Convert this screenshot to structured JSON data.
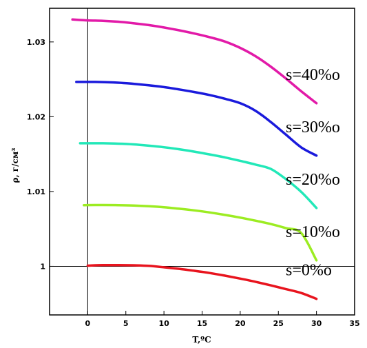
{
  "chart_data": {
    "type": "line",
    "title": "",
    "xlabel": "T,ºC",
    "ylabel": "ρ, г/см³",
    "xlim": [
      -5,
      35
    ],
    "ylim": [
      0.9935,
      1.0345
    ],
    "x_ticks": [
      0,
      5,
      10,
      15,
      20,
      25,
      30,
      35
    ],
    "x_tick_labels": [
      "0",
      "5",
      "10",
      "15",
      "20",
      "25",
      "30",
      "35"
    ],
    "y_ticks": [
      1.0,
      1.01,
      1.02,
      1.03
    ],
    "y_tick_labels": [
      "1",
      "1.01",
      "1.02",
      "1.03"
    ],
    "reference_lines": {
      "x": 0,
      "y": 1.0
    },
    "grid": false,
    "legend": "inline labels at right end of each curve",
    "series": [
      {
        "name": "s=0‰",
        "label": "s=0%o",
        "color": "#e8141e",
        "x": [
          0,
          2,
          4,
          6,
          8,
          10,
          12,
          14,
          16,
          18,
          20,
          22,
          24,
          26,
          28,
          30
        ],
        "y": [
          1.00009,
          1.00015,
          1.00016,
          1.00013,
          1.00006,
          0.99987,
          0.99966,
          0.9994,
          0.9991,
          0.99875,
          0.99836,
          0.99793,
          0.99745,
          0.99695,
          0.99643,
          0.99565
        ]
      },
      {
        "name": "s=10‰",
        "label": "s=10%o",
        "color": "#9cec22",
        "x": [
          -0.5,
          2,
          4,
          6,
          8,
          10,
          12,
          14,
          16,
          18,
          20,
          22,
          24,
          26,
          28,
          30
        ],
        "y": [
          1.00818,
          1.0082,
          1.00818,
          1.00813,
          1.00803,
          1.0079,
          1.0077,
          1.00748,
          1.0072,
          1.00687,
          1.00651,
          1.0061,
          1.00565,
          1.0051,
          1.00445,
          1.0008
        ]
      },
      {
        "name": "s=20‰",
        "label": "s=20%o",
        "color": "#22e8b8",
        "x": [
          -1,
          2,
          4,
          6,
          8,
          10,
          12,
          14,
          16,
          18,
          20,
          22,
          24,
          26,
          28,
          30
        ],
        "y": [
          1.01645,
          1.01645,
          1.0164,
          1.0163,
          1.01613,
          1.01592,
          1.01565,
          1.01533,
          1.01496,
          1.01456,
          1.0141,
          1.0136,
          1.01302,
          1.01165,
          1.00995,
          1.0078
        ]
      },
      {
        "name": "s=30‰",
        "label": "s=30%o",
        "color": "#1a1adc",
        "x": [
          -1.5,
          1,
          4,
          6,
          8,
          10,
          12,
          14,
          16,
          18,
          20,
          22,
          24,
          26,
          28,
          30
        ],
        "y": [
          1.02465,
          1.02465,
          1.02455,
          1.0244,
          1.0242,
          1.02396,
          1.02365,
          1.0233,
          1.0229,
          1.0224,
          1.0218,
          1.0208,
          1.0193,
          1.0176,
          1.0159,
          1.0148
        ]
      },
      {
        "name": "s=40‰",
        "label": "s=40%o",
        "color": "#e21aa8",
        "x": [
          -2,
          0,
          2,
          4,
          6,
          8,
          10,
          12,
          14,
          16,
          18,
          20,
          22,
          24,
          26,
          28,
          30
        ],
        "y": [
          1.033,
          1.03288,
          1.03282,
          1.0327,
          1.0325,
          1.03225,
          1.03193,
          1.03155,
          1.03112,
          1.03063,
          1.03005,
          1.0292,
          1.0281,
          1.0267,
          1.0251,
          1.0234,
          1.0218
        ]
      }
    ]
  }
}
